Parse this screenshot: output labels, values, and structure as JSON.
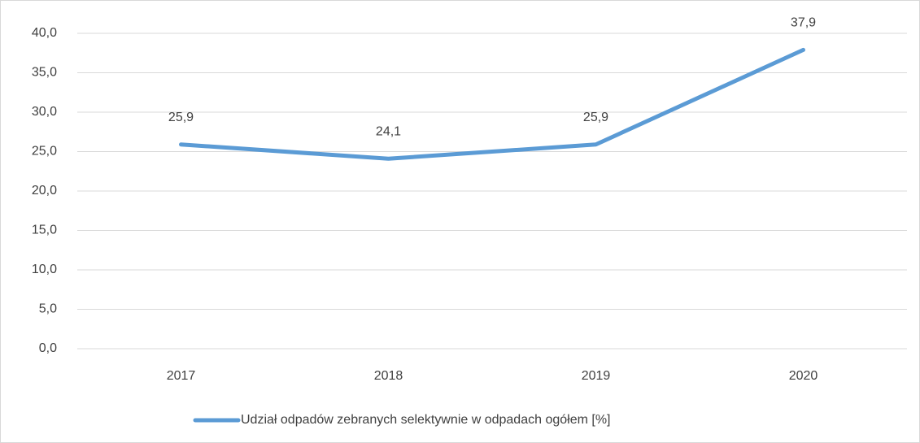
{
  "chart_data": {
    "type": "line",
    "categories": [
      "2017",
      "2018",
      "2019",
      "2020"
    ],
    "series": [
      {
        "name": "Udział odpadów zebranych selektywnie w odpadach ogółem [%]",
        "color": "#5b9bd5",
        "values": [
          25.9,
          24.1,
          25.9,
          37.9
        ],
        "value_labels": [
          "25,9",
          "24,1",
          "25,9",
          "37,9"
        ]
      }
    ],
    "ylim": [
      0,
      40
    ],
    "yticks": [
      {
        "value": 0,
        "label": "0,0"
      },
      {
        "value": 5,
        "label": "5,0"
      },
      {
        "value": 10,
        "label": "10,0"
      },
      {
        "value": 15,
        "label": "15,0"
      },
      {
        "value": 20,
        "label": "20,0"
      },
      {
        "value": 25,
        "label": "25,0"
      },
      {
        "value": 30,
        "label": "30,0"
      },
      {
        "value": 35,
        "label": "35,0"
      },
      {
        "value": 40,
        "label": "40,0"
      }
    ],
    "grid": true,
    "legend": "bottom"
  }
}
